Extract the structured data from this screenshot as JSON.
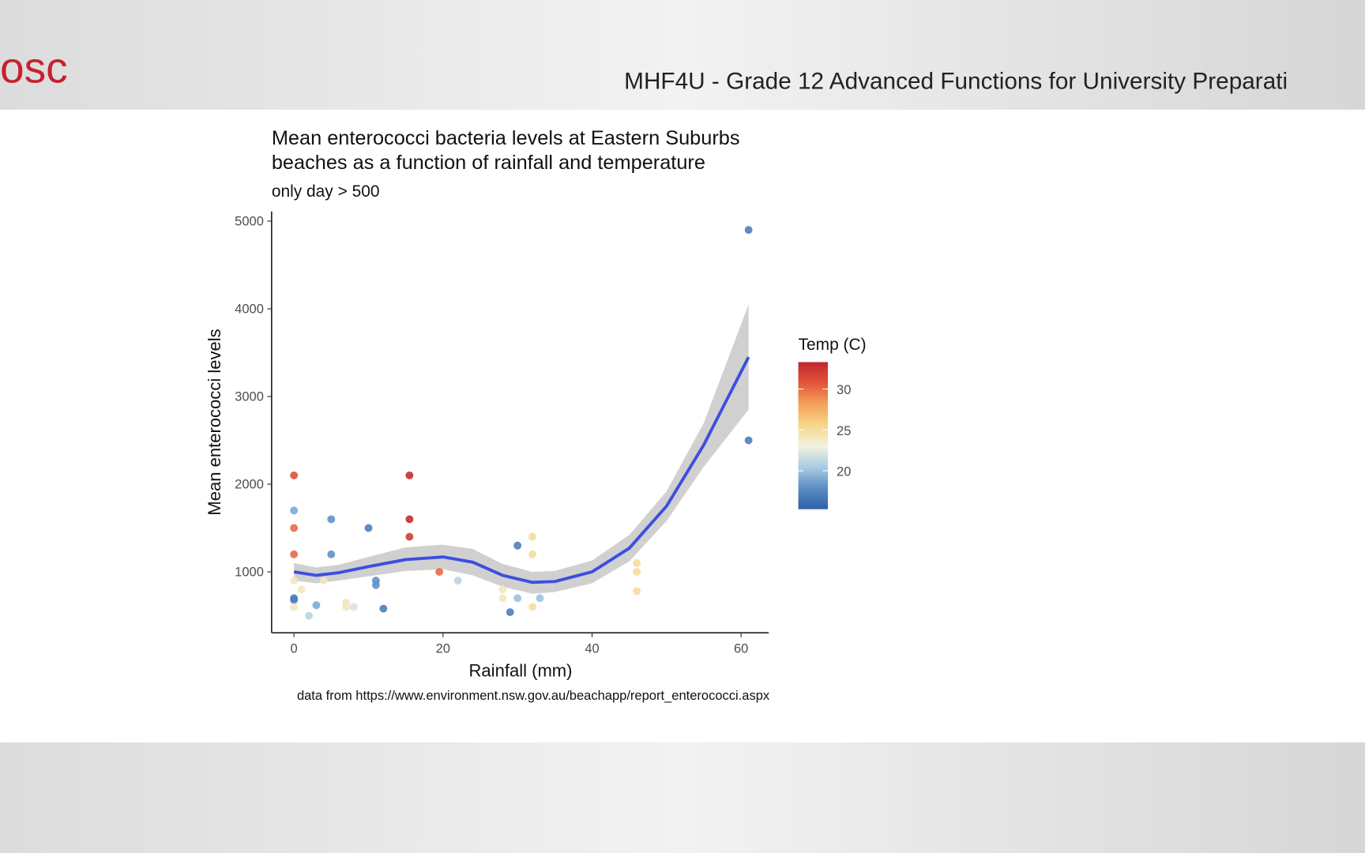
{
  "header": {
    "logo": "osc",
    "course": "MHF4U - Grade 12 Advanced Functions for University Preparati"
  },
  "chart_data": {
    "type": "scatter",
    "title": [
      "Mean enterococci bacteria levels at Eastern Suburbs",
      "beaches as a function of rainfall and temperature"
    ],
    "subtitle": "only day > 500",
    "x_label": "Rainfall (mm)",
    "y_label": "Mean enterococci levels",
    "caption": "data from https://www.environment.nsw.gov.au/beachapp/report_enterococci.aspx",
    "xlim": [
      -3,
      63.7
    ],
    "ylim": [
      305,
      5110
    ],
    "xticks": [
      0,
      20,
      40,
      60
    ],
    "yticks": [
      1000,
      2000,
      3000,
      4000,
      5000
    ],
    "x": [
      0,
      0,
      0,
      0,
      0,
      0,
      0,
      0,
      1,
      2,
      3,
      4,
      5,
      5,
      7,
      7,
      8,
      10,
      11,
      11,
      12,
      15.5,
      15.5,
      15.5,
      19.5,
      22,
      28,
      28,
      29,
      30,
      30,
      32,
      32,
      32,
      33,
      46,
      46,
      46,
      61,
      61
    ],
    "y": [
      2100,
      1700,
      1500,
      1200,
      700,
      680,
      600,
      900,
      800,
      500,
      620,
      900,
      1600,
      1200,
      650,
      600,
      600,
      1500,
      900,
      850,
      580,
      2100,
      1600,
      1400,
      1000,
      900,
      800,
      700,
      540,
      1300,
      700,
      1400,
      1200,
      600,
      700,
      1100,
      1000,
      780,
      4900,
      2500
    ],
    "temp": [
      31,
      19,
      30,
      30,
      17,
      17,
      24,
      24,
      24,
      21,
      19,
      24,
      18,
      18,
      24,
      24,
      22,
      17,
      18,
      18,
      17,
      33,
      33,
      32,
      30,
      21,
      24,
      24,
      17,
      17,
      20,
      25,
      25,
      25,
      20,
      25,
      25,
      25,
      17,
      17
    ],
    "colorbar": {
      "title": "Temp (C)",
      "lim": [
        15.3,
        33.3
      ],
      "ticks": [
        20,
        25,
        30
      ],
      "colors": [
        "#2f5ea8",
        "#5b8ec4",
        "#a9cce3",
        "#f2f2e0",
        "#f7d68a",
        "#f4a259",
        "#e2553a",
        "#c1272d"
      ]
    },
    "smooth": {
      "color": "#3a4fe0",
      "band_color": "#c8c8c8",
      "x": [
        0,
        3,
        6,
        10,
        15,
        20,
        24,
        28,
        32,
        35,
        40,
        45,
        50,
        55,
        61
      ],
      "y": [
        1000,
        960,
        990,
        1060,
        1140,
        1170,
        1110,
        960,
        880,
        890,
        1000,
        1270,
        1750,
        2450,
        3450
      ],
      "upper": [
        1100,
        1050,
        1080,
        1170,
        1280,
        1310,
        1260,
        1090,
        1000,
        1010,
        1130,
        1420,
        1920,
        2700,
        4050
      ],
      "lower": [
        900,
        870,
        900,
        950,
        1010,
        1030,
        960,
        830,
        750,
        770,
        870,
        1120,
        1580,
        2200,
        2850
      ]
    }
  }
}
